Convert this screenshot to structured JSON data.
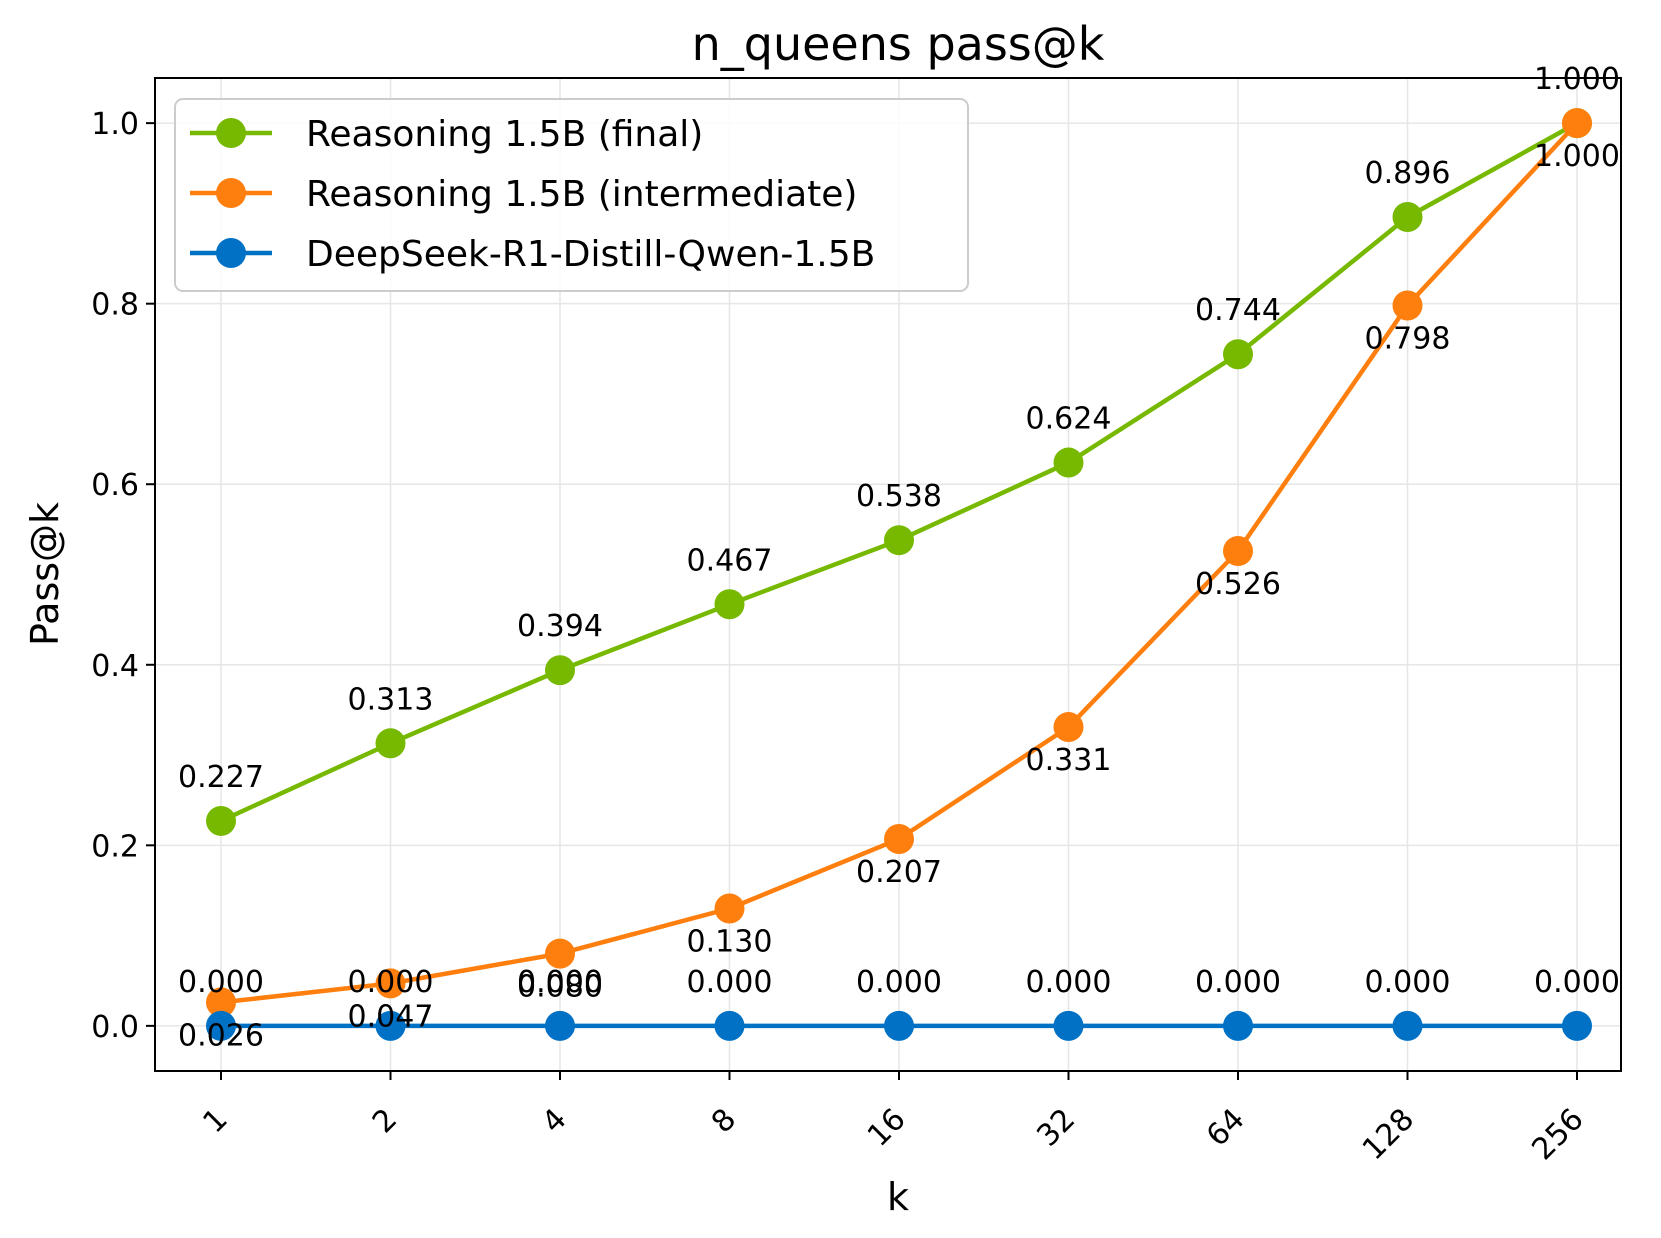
{
  "chart_data": {
    "type": "line",
    "title": "n_queens pass@k",
    "xlabel": "k",
    "ylabel": "Pass@k",
    "x": [
      "1",
      "2",
      "4",
      "8",
      "16",
      "32",
      "64",
      "128",
      "256"
    ],
    "ylim": [
      -0.05,
      1.05
    ],
    "yticks": [
      "0.0",
      "0.2",
      "0.4",
      "0.6",
      "0.8",
      "1.0"
    ],
    "ytick_values": [
      0.0,
      0.2,
      0.4,
      0.6,
      0.8,
      1.0
    ],
    "grid": true,
    "legend_position": "top-left",
    "series": [
      {
        "name": "Reasoning 1.5B (final)",
        "color": "#76b900",
        "label_position": "above",
        "values": [
          0.227,
          0.313,
          0.394,
          0.467,
          0.538,
          0.624,
          0.744,
          0.896,
          1.0
        ],
        "labels": [
          "0.227",
          "0.313",
          "0.394",
          "0.467",
          "0.538",
          "0.624",
          "0.744",
          "0.896",
          "1.000"
        ]
      },
      {
        "name": "Reasoning 1.5B (intermediate)",
        "color": "#ff7f0e",
        "label_position": "below",
        "values": [
          0.026,
          0.047,
          0.08,
          0.13,
          0.207,
          0.331,
          0.526,
          0.798,
          1.0
        ],
        "labels": [
          "0.026",
          "0.047",
          "0.080",
          "0.130",
          "0.207",
          "0.331",
          "0.526",
          "0.798",
          "1.000"
        ]
      },
      {
        "name": "DeepSeek-R1-Distill-Qwen-1.5B",
        "color": "#0071c5",
        "label_position": "above",
        "values": [
          0,
          0,
          0,
          0,
          0,
          0,
          0,
          0,
          0
        ],
        "labels": [
          "0.000",
          "0.000",
          "0.000",
          "0.000",
          "0.000",
          "0.000",
          "0.000",
          "0.000",
          "0.000"
        ]
      }
    ]
  }
}
